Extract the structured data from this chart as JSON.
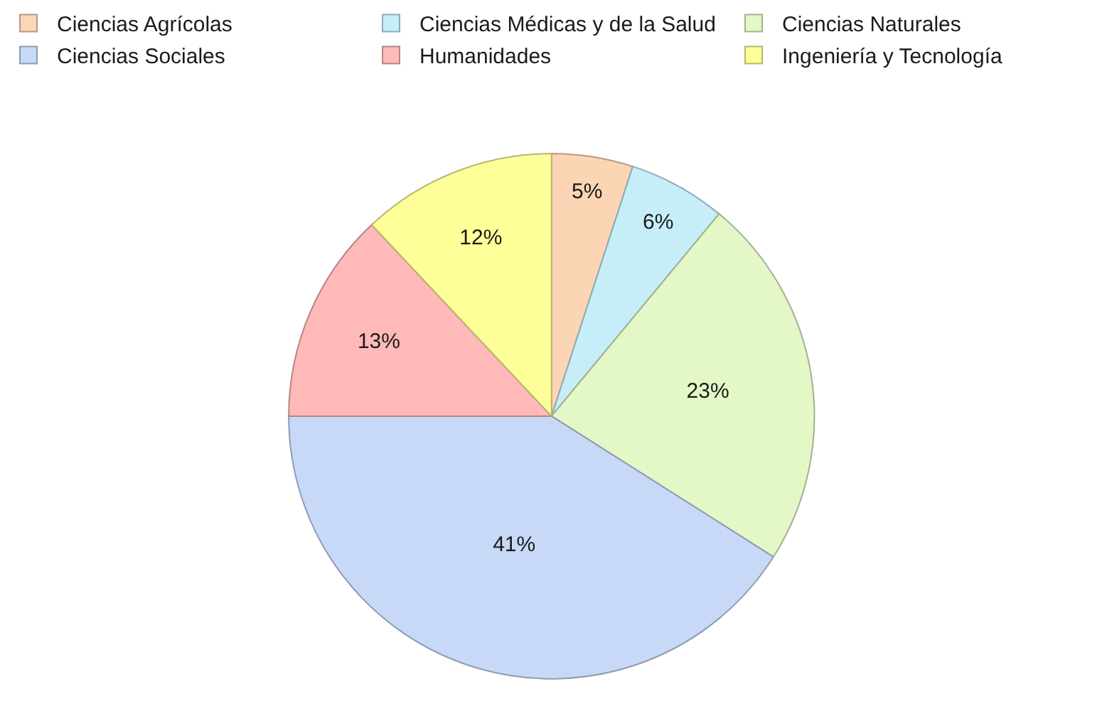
{
  "chart_data": {
    "type": "pie",
    "categories": [
      "Ciencias Agrícolas",
      "Ciencias Médicas y de la Salud",
      "Ciencias Naturales",
      "Ciencias Sociales",
      "Humanidades",
      "Ingeniería y Tecnología"
    ],
    "values": [
      5,
      6,
      23,
      41,
      13,
      12
    ],
    "value_labels": [
      "5%",
      "6%",
      "23%",
      "41%",
      "13%",
      "12%"
    ],
    "colors": [
      "#fcd5b5",
      "#c6eef9",
      "#e4f7c6",
      "#c7d9f7",
      "#ffb9b9",
      "#ffff99"
    ],
    "legend": "top"
  }
}
